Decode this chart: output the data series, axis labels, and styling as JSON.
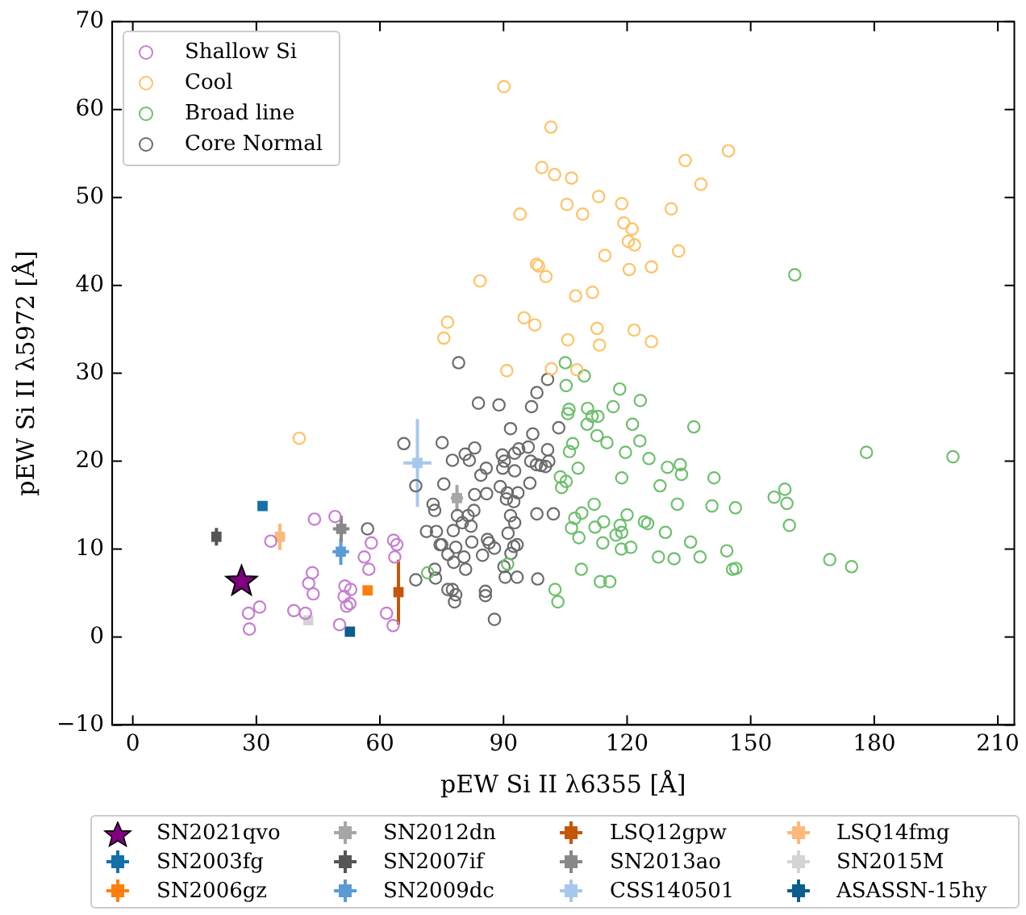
{
  "chart_data": {
    "type": "scatter",
    "xlabel": "pEW Si II λ6355 [Å]",
    "ylabel": "pEW Si II λ5972 [Å]",
    "xlim": [
      -5,
      214
    ],
    "ylim": [
      -10,
      70
    ],
    "xticks": [
      0,
      30,
      60,
      90,
      120,
      150,
      180,
      210
    ],
    "yticks": [
      {
        "value": -10,
        "label": "−10"
      },
      0,
      10,
      20,
      30,
      40,
      50,
      60,
      70
    ],
    "grid": false,
    "legend": "bottom",
    "series": [
      {
        "name": "Shallow Si",
        "color": "#c57fcf",
        "marker": "circle",
        "x": [
          44.1,
          49.1,
          33.5,
          57.9,
          56.2,
          57.3,
          63.3,
          64.1,
          63.6,
          43.6,
          42.7,
          43.8,
          51.5,
          52.9,
          51.3,
          52.7,
          51.9,
          30.8,
          28.1,
          28.3,
          39.1,
          41.9,
          50.2,
          61.6,
          63.2
        ],
        "values": [
          13.4,
          13.7,
          10.9,
          10.7,
          9.1,
          7.7,
          11.0,
          10.5,
          9.1,
          7.3,
          6.1,
          4.9,
          5.8,
          5.4,
          4.6,
          3.8,
          3.5,
          3.4,
          2.7,
          0.9,
          3.0,
          2.7,
          1.4,
          2.7,
          1.3
        ]
      },
      {
        "name": "Cool",
        "color": "#ffc266",
        "marker": "circle",
        "x": [
          125.9,
          125.9,
          132.5,
          90.1,
          101.5,
          144.6,
          134.1,
          99.3,
          102.4,
          106.5,
          137.9,
          113.1,
          105.4,
          118.7,
          130.7,
          94.0,
          109.2,
          119.2,
          121.2,
          120.3,
          121.8,
          114.6,
          98.0,
          98.5,
          84.3,
          100.3,
          120.5,
          107.5,
          111.6,
          95.0,
          97.6,
          105.6,
          112.7,
          121.7,
          113.3,
          76.4,
          75.5,
          90.8,
          101.6,
          107.8,
          40.4
        ],
        "values": [
          42.1,
          33.6,
          43.9,
          62.6,
          58.0,
          55.3,
          54.2,
          53.4,
          52.6,
          52.2,
          51.5,
          50.1,
          49.2,
          49.3,
          48.7,
          48.1,
          48.1,
          47.1,
          46.4,
          45.0,
          44.6,
          43.4,
          42.4,
          42.2,
          40.5,
          41.0,
          41.8,
          38.8,
          39.2,
          36.3,
          35.5,
          33.8,
          35.1,
          34.9,
          33.2,
          35.8,
          34.0,
          30.3,
          30.5,
          30.4,
          22.6
        ]
      },
      {
        "name": "Broad line",
        "color": "#6dbf6d",
        "marker": "circle",
        "x": [
          71.6,
          105.0,
          109.6,
          105.2,
          118.2,
          123.2,
          116.6,
          105.9,
          105.6,
          110.4,
          111.5,
          112.9,
          110.3,
          121.3,
          136.2,
          112.7,
          115.1,
          106.8,
          123.1,
          106.0,
          119.6,
          125.3,
          108.1,
          129.8,
          132.9,
          133.2,
          103.8,
          105.2,
          104.1,
          118.7,
          128.0,
          132.2,
          112.0,
          109.0,
          107.3,
          106.5,
          114.3,
          112.2,
          118.3,
          120.0,
          124.2,
          125.0,
          117.3,
          118.7,
          108.3,
          114.1,
          118.6,
          120.9,
          129.3,
          135.4,
          127.6,
          131.4,
          137.7,
          108.9,
          91.0,
          113.5,
          115.8,
          102.5,
          103.2,
          160.7,
          178.1,
          199.1,
          141.1,
          158.3,
          155.7,
          158.8,
          140.6,
          146.3,
          159.4,
          144.2,
          145.6,
          146.4,
          169.2,
          174.5
        ],
        "values": [
          7.3,
          31.2,
          29.7,
          28.6,
          28.2,
          26.9,
          26.2,
          25.9,
          25.4,
          26.0,
          25.1,
          25.1,
          24.2,
          24.2,
          23.9,
          22.9,
          22.1,
          22.0,
          22.3,
          21.1,
          21.0,
          20.3,
          19.2,
          19.3,
          19.6,
          18.5,
          18.2,
          17.7,
          17.0,
          18.1,
          17.2,
          15.1,
          15.1,
          14.1,
          13.5,
          12.4,
          13.1,
          12.5,
          12.7,
          13.9,
          13.1,
          12.9,
          11.6,
          11.9,
          11.3,
          10.7,
          10.0,
          10.2,
          11.9,
          10.8,
          9.1,
          8.9,
          9.1,
          7.7,
          8.3,
          6.3,
          6.3,
          5.4,
          4.0,
          41.2,
          21.0,
          20.5,
          18.1,
          16.8,
          15.9,
          15.2,
          14.9,
          14.7,
          12.7,
          9.8,
          7.7,
          7.8,
          8.8,
          8.0
        ]
      },
      {
        "name": "Core Normal",
        "color": "#6b6b6b",
        "marker": "circle",
        "x": [
          65.8,
          68.7,
          72.9,
          73.3,
          57.0,
          71.3,
          73.7,
          74.6,
          73.3,
          68.7,
          73.5,
          76.5,
          79.1,
          100.7,
          98.1,
          83.9,
          88.9,
          96.8,
          91.7,
          103.4,
          97.1,
          75.1,
          83.0,
          80.7,
          77.6,
          81.7,
          89.7,
          92.7,
          93.7,
          96.0,
          100.7,
          90.2,
          96.6,
          98.0,
          99.1,
          100.2,
          101.0,
          85.8,
          89.8,
          92.7,
          84.5,
          75.5,
          89.2,
          96.4,
          83.0,
          85.9,
          90.9,
          93.5,
          90.7,
          92.5,
          98.1,
          102.1,
          82.8,
          91.7,
          78.8,
          81.4,
          80.0,
          92.7,
          77.8,
          82.1,
          91.1,
          86.1,
          86.5,
          75.0,
          78.4,
          82.3,
          87.8,
          92.5,
          93.3,
          76.5,
          80.4,
          84.9,
          91.8,
          77.9,
          80.8,
          90.1,
          90.4,
          93.3,
          98.3,
          77.6,
          78.4,
          85.6,
          85.6,
          78.1,
          87.8
        ],
        "values": [
          22.0,
          17.2,
          15.1,
          14.4,
          12.3,
          12.0,
          12.0,
          10.5,
          7.7,
          6.5,
          6.7,
          5.4,
          31.2,
          29.3,
          27.8,
          26.6,
          26.4,
          26.2,
          23.7,
          23.8,
          23.1,
          22.1,
          21.5,
          20.8,
          20.1,
          20.1,
          20.7,
          20.9,
          21.4,
          21.6,
          21.3,
          20.0,
          20.0,
          19.6,
          19.5,
          19.4,
          20.0,
          19.2,
          19.2,
          18.9,
          18.4,
          17.4,
          17.1,
          17.5,
          16.2,
          16.3,
          16.4,
          16.4,
          15.7,
          15.4,
          14.0,
          14.0,
          14.4,
          13.8,
          13.8,
          13.8,
          13.0,
          13.0,
          12.1,
          12.6,
          11.8,
          11.1,
          10.7,
          10.5,
          10.2,
          10.8,
          10.1,
          10.3,
          10.5,
          9.4,
          9.1,
          9.3,
          9.5,
          8.5,
          7.7,
          8.0,
          6.8,
          6.8,
          6.6,
          5.4,
          4.8,
          5.2,
          4.7,
          4.0,
          2.0
        ]
      },
      {
        "name": "SN2021qvo",
        "color": "#800080",
        "marker": "star",
        "x": [
          26.4
        ],
        "values": [
          6.3
        ]
      },
      {
        "name": "SN2003fg",
        "color": "#1470a8",
        "marker": "square",
        "x": [
          31.5
        ],
        "values": [
          14.9
        ],
        "errors": [
          0.5
        ]
      },
      {
        "name": "SN2006gz",
        "color": "#ff7f0e",
        "marker": "square",
        "x": [
          57.0
        ],
        "values": [
          5.3
        ]
      },
      {
        "name": "SN2012dn",
        "color": "#a6a6a6",
        "marker": "square",
        "x": [
          78.7
        ],
        "values": [
          15.8
        ],
        "errors": [
          1.5
        ],
        "xerrors": [
          1.5
        ]
      },
      {
        "name": "SN2007if",
        "color": "#555555",
        "marker": "square",
        "x": [
          20.3
        ],
        "values": [
          11.4
        ],
        "errors": [
          1.0
        ],
        "xerrors": [
          1.0
        ]
      },
      {
        "name": "SN2009dc",
        "color": "#5b9bd5",
        "marker": "square",
        "x": [
          50.5
        ],
        "values": [
          9.7
        ],
        "errors": [
          1.5
        ],
        "xerrors": [
          2.0
        ]
      },
      {
        "name": "LSQ12gpw",
        "color": "#c6560c",
        "marker": "square",
        "x": [
          64.5
        ],
        "values": [
          5.1
        ],
        "errors": [
          3.7
        ]
      },
      {
        "name": "SN2013ao",
        "color": "#888888",
        "marker": "square",
        "x": [
          50.6
        ],
        "values": [
          12.3
        ],
        "errors": [
          1.5
        ],
        "xerrors": [
          2.0
        ]
      },
      {
        "name": "CSS140501",
        "color": "#a6c8ec",
        "marker": "square",
        "x": [
          69.1
        ],
        "values": [
          19.8
        ],
        "errors": [
          5.0
        ],
        "xerrors": [
          3.4
        ]
      },
      {
        "name": "LSQ14fmg",
        "color": "#fdb97a",
        "marker": "square",
        "x": [
          35.7
        ],
        "values": [
          11.4
        ],
        "errors": [
          1.5
        ],
        "xerrors": [
          1.0
        ]
      },
      {
        "name": "SN2015M",
        "color": "#d4d4d4",
        "marker": "square",
        "x": [
          42.6
        ],
        "values": [
          1.9
        ]
      },
      {
        "name": "ASASSN-15hy",
        "color": "#0b5e8e",
        "marker": "square",
        "x": [
          52.7
        ],
        "values": [
          0.6
        ]
      }
    ]
  }
}
